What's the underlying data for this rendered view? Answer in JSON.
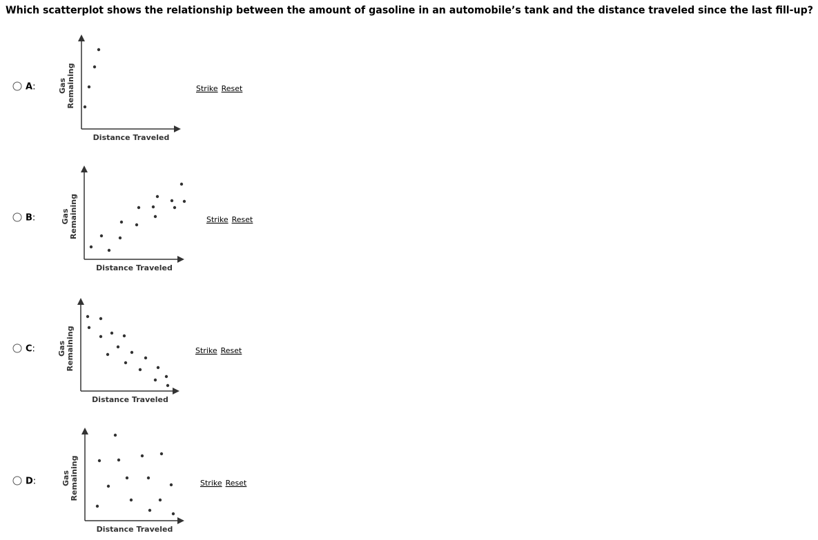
{
  "question": "Which scatterplot shows the relationship between the amount of gasoline in an automobile’s tank and the distance traveled since the last fill-up?",
  "options": [
    {
      "letter": "A",
      "separator": ":",
      "y_label": [
        "Gas",
        "Remaining"
      ],
      "x_label": "Distance Traveled",
      "strike": "Strike",
      "reset": "Reset"
    },
    {
      "letter": "B",
      "separator": ":",
      "y_label": [
        "Gas",
        "Remaining"
      ],
      "x_label": "Distance Traveled",
      "strike": "Strike",
      "reset": "Reset"
    },
    {
      "letter": "C",
      "separator": ":",
      "y_label": [
        "Gas",
        "Remaining"
      ],
      "x_label": "Distance Traveled",
      "strike": "Strike",
      "reset": "Reset"
    },
    {
      "letter": "D",
      "separator": ":",
      "y_label": [
        "Gas",
        "Remaining"
      ],
      "x_label": "Distance Traveled",
      "strike": "Strike",
      "reset": "Reset"
    }
  ]
}
